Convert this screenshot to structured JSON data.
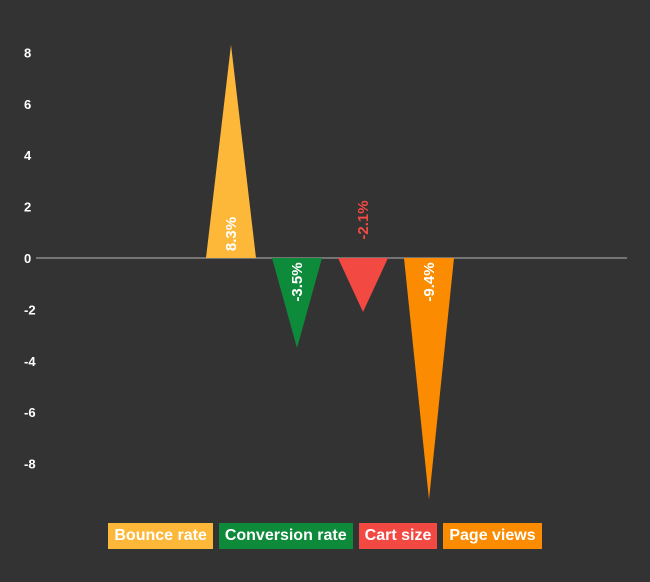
{
  "chart_data": {
    "type": "bar",
    "categories": [
      "Bounce rate",
      "Conversion rate",
      "Cart size",
      "Page views"
    ],
    "series": [
      {
        "values": [
          8.3,
          -3.5,
          -2.1,
          -9.4
        ],
        "labels": [
          "8.3%",
          "-3.5%",
          "-2.1%",
          "-9.4%"
        ],
        "colors": [
          "#FDB83A",
          "#0D8A3A",
          "#F24A43",
          "#FB8B00"
        ]
      }
    ],
    "y_ticks": [
      8,
      6,
      4,
      2,
      0,
      -2,
      -4,
      -6,
      -8
    ],
    "ylim": [
      -9.4,
      8.3
    ],
    "grid": false,
    "legend_position": "bottom",
    "background_color": "#333333"
  },
  "legend": {
    "items": [
      {
        "label": "Bounce rate",
        "color": "#FDB83A"
      },
      {
        "label": "Conversion rate",
        "color": "#0D8A3A"
      },
      {
        "label": "Cart size",
        "color": "#F24A43"
      },
      {
        "label": "Page views",
        "color": "#FB8B00"
      }
    ]
  }
}
